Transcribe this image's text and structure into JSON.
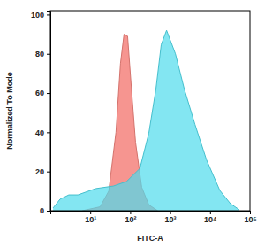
{
  "chart_data": {
    "type": "area",
    "x_label": "FITC-A",
    "y_label": "Normalized To Mode",
    "log": "x",
    "grid": false,
    "xlim": [
      1,
      100000
    ],
    "xticks": [
      {
        "value": 10,
        "label": "10¹"
      },
      {
        "value": 100,
        "label": "10²"
      },
      {
        "value": 1000,
        "label": "10³"
      },
      {
        "value": 10000,
        "label": "10⁴"
      },
      {
        "value": 100000,
        "label": "10⁵"
      }
    ],
    "ylim": [
      0,
      102
    ],
    "yticks": [
      0,
      20,
      40,
      60,
      80,
      100
    ],
    "series": [
      {
        "color": "#f4837d",
        "x": [
          6.3,
          17.6,
          29,
          44,
          57,
          70,
          86,
          105,
          136,
          194,
          293,
          490
        ],
        "values": [
          0,
          2,
          10,
          40,
          75,
          90,
          89,
          65,
          35,
          12,
          3,
          0
        ]
      },
      {
        "color": "#4fdcec",
        "x": [
          1.17,
          1.75,
          2.9,
          4.9,
          13.6,
          37.8,
          81,
          175,
          293,
          441,
          599,
          815,
          1359,
          2268,
          4190,
          8140,
          17540,
          32400,
          54100
        ],
        "values": [
          1.4,
          5.9,
          8.1,
          8.1,
          11.3,
          12.6,
          14.9,
          21.6,
          39.6,
          62,
          84.7,
          92,
          80,
          62,
          44,
          26,
          10.4,
          3.6,
          0.5
        ]
      }
    ]
  }
}
